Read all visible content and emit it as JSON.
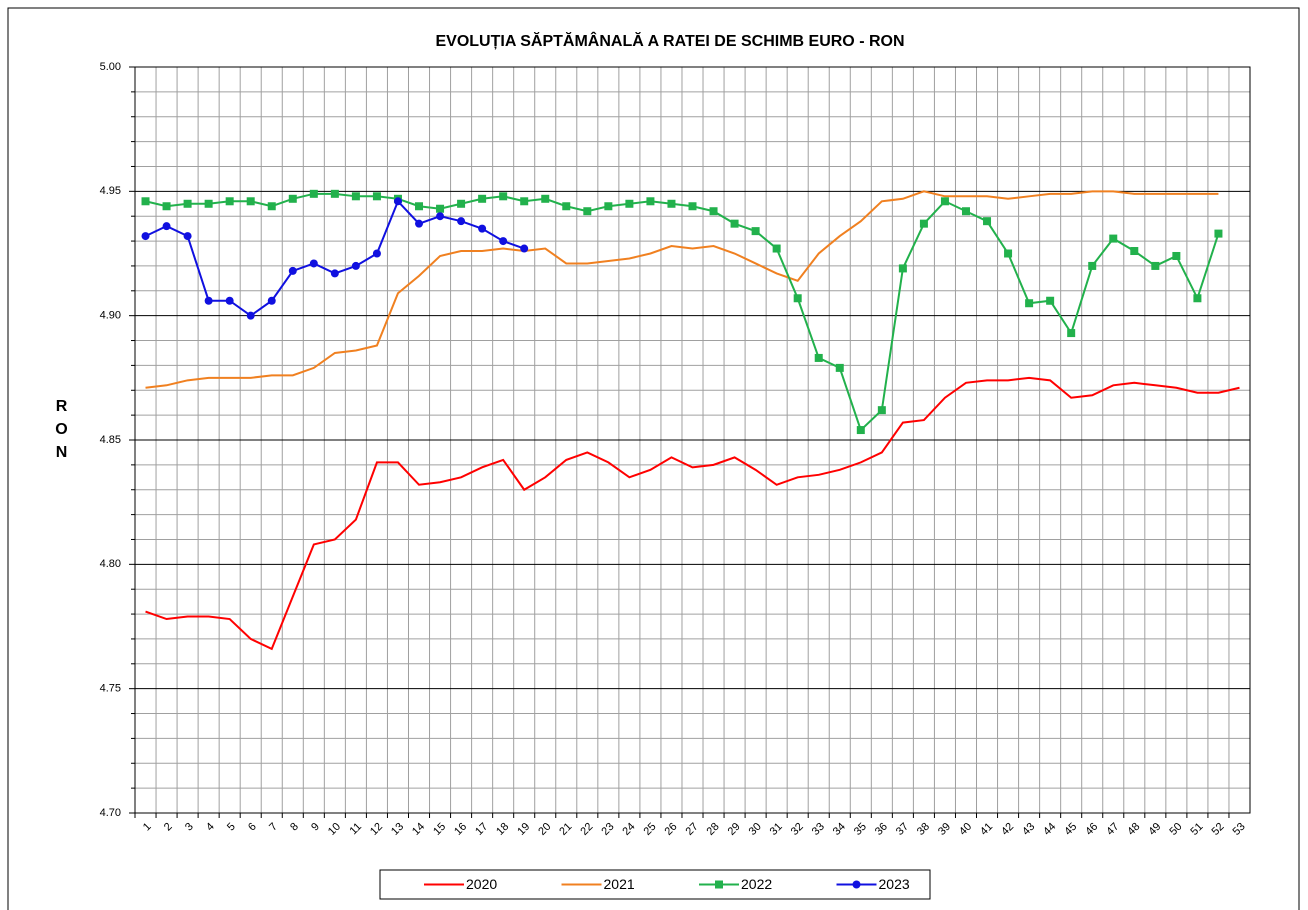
{
  "chart_data": {
    "type": "line",
    "title": "EVOLUȚIA SĂPTĂMÂNALĂ  A RATEI DE SCHIMB EURO - RON",
    "y_label": "RON",
    "categories": [
      "1",
      "2",
      "3",
      "4",
      "5",
      "6",
      "7",
      "8",
      "9",
      "10",
      "11",
      "12",
      "13",
      "14",
      "15",
      "16",
      "17",
      "18",
      "19",
      "20",
      "21",
      "22",
      "23",
      "24",
      "25",
      "26",
      "27",
      "28",
      "29",
      "30",
      "31",
      "32",
      "33",
      "34",
      "35",
      "36",
      "37",
      "38",
      "39",
      "40",
      "41",
      "42",
      "43",
      "44",
      "45",
      "46",
      "47",
      "48",
      "49",
      "50",
      "51",
      "52",
      "53"
    ],
    "ylim": [
      4.7,
      5.0
    ],
    "yticks": [
      {
        "value": 4.7,
        "label": "4.70"
      },
      4.75,
      {
        "value": 4.8,
        "label": "4.80"
      },
      4.85,
      {
        "value": 4.9,
        "label": "4.90"
      },
      4.95,
      {
        "value": 5.0,
        "label": "5.00"
      }
    ],
    "grid": true,
    "legend": "bottom",
    "series": [
      {
        "name": "2020",
        "color": "#ff0000",
        "marker": "none",
        "values": [
          4.781,
          4.778,
          4.779,
          4.779,
          4.778,
          4.77,
          4.766,
          4.787,
          4.808,
          4.81,
          4.818,
          4.841,
          4.841,
          4.832,
          4.833,
          4.835,
          4.839,
          4.842,
          4.83,
          4.835,
          4.842,
          4.845,
          4.841,
          4.835,
          4.838,
          4.843,
          4.839,
          4.84,
          4.843,
          4.838,
          4.832,
          4.835,
          4.836,
          4.838,
          4.841,
          4.845,
          4.857,
          4.858,
          4.867,
          4.873,
          4.874,
          4.874,
          4.875,
          4.874,
          4.867,
          4.868,
          4.872,
          4.873,
          4.872,
          4.871,
          4.869,
          4.869,
          4.871
        ]
      },
      {
        "name": "2021",
        "color": "#f08020",
        "marker": "none",
        "values": [
          4.871,
          4.872,
          4.874,
          4.875,
          4.875,
          4.875,
          4.876,
          4.876,
          4.879,
          4.885,
          4.886,
          4.888,
          4.909,
          4.916,
          4.924,
          4.926,
          4.926,
          4.927,
          4.926,
          4.927,
          4.921,
          4.921,
          4.922,
          4.923,
          4.925,
          4.928,
          4.927,
          4.928,
          4.925,
          4.921,
          4.917,
          4.914,
          4.925,
          4.932,
          4.938,
          4.946,
          4.947,
          4.95,
          4.948,
          4.948,
          4.948,
          4.947,
          4.948,
          4.949,
          4.949,
          4.95,
          4.95,
          4.949,
          4.949,
          4.949,
          4.949,
          4.949,
          null
        ]
      },
      {
        "name": "2022",
        "color": "#22b14c",
        "marker": "square",
        "values": [
          4.946,
          4.944,
          4.945,
          4.945,
          4.946,
          4.946,
          4.944,
          4.947,
          4.949,
          4.949,
          4.948,
          4.948,
          4.947,
          4.944,
          4.943,
          4.945,
          4.947,
          4.948,
          4.946,
          4.947,
          4.944,
          4.942,
          4.944,
          4.945,
          4.946,
          4.945,
          4.944,
          4.942,
          4.937,
          4.934,
          4.927,
          4.907,
          4.883,
          4.879,
          4.854,
          4.862,
          4.919,
          4.937,
          4.946,
          4.942,
          4.938,
          4.925,
          4.905,
          4.906,
          4.893,
          4.92,
          4.931,
          4.926,
          4.92,
          4.924,
          4.907,
          4.933,
          null
        ]
      },
      {
        "name": "2023",
        "color": "#1010e0",
        "marker": "circle",
        "values": [
          4.932,
          4.936,
          4.932,
          4.906,
          4.906,
          4.9,
          4.906,
          4.918,
          4.921,
          4.917,
          4.92,
          4.925,
          4.946,
          4.937,
          4.94,
          4.938,
          4.935,
          4.93,
          4.927,
          null,
          null,
          null,
          null,
          null,
          null,
          null,
          null,
          null,
          null,
          null,
          null,
          null,
          null,
          null,
          null,
          null,
          null,
          null,
          null,
          null,
          null,
          null,
          null,
          null,
          null,
          null,
          null,
          null,
          null,
          null,
          null,
          null,
          null
        ]
      }
    ]
  }
}
